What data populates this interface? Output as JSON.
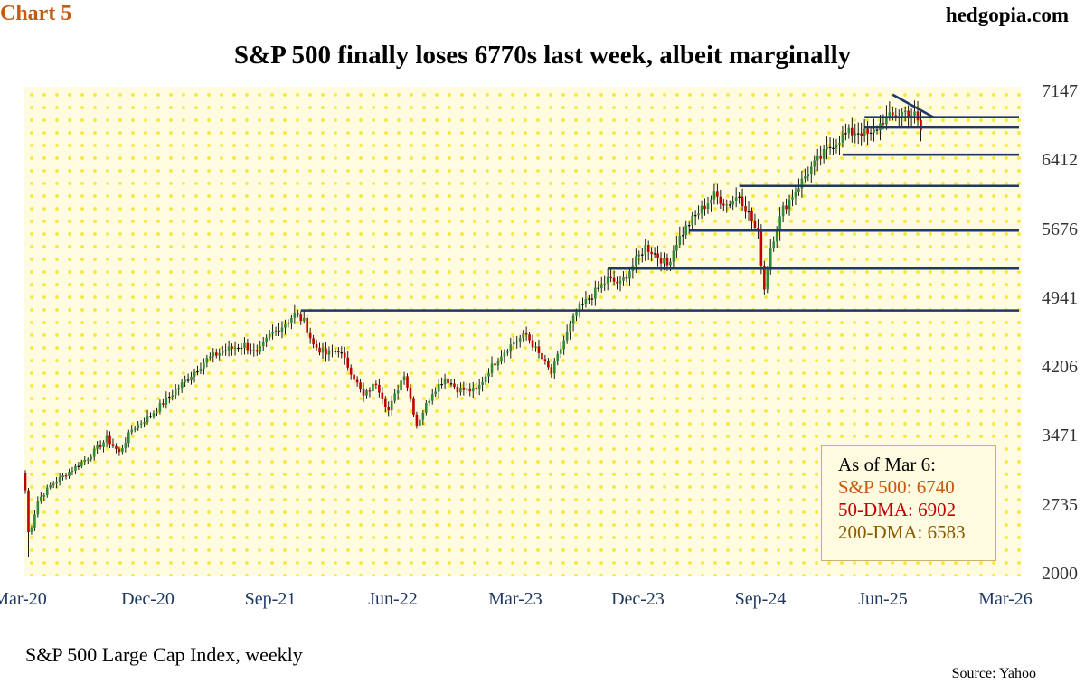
{
  "header": {
    "chart_number": "Chart 5",
    "site": "hedgopia.com",
    "title": "S&P 500 finally loses 6770s last week, albeit marginally"
  },
  "footer": {
    "subtitle": "S&P 500 Large Cap Index, weekly",
    "source": "Source: Yahoo"
  },
  "legend_box": {
    "heading": "As of Mar 6:",
    "lines": [
      {
        "text": "S&P 500: 6740",
        "color": "#c55a11"
      },
      {
        "text": "50-DMA: 6902",
        "color": "#c00000"
      },
      {
        "text": "200-DMA: 6583",
        "color": "#8b5a00"
      }
    ]
  },
  "colors": {
    "up": "#2e8b3a",
    "down": "#c00000",
    "flat": "#000000",
    "lines": "#1f3864",
    "plot_bg": "#fffbe0",
    "dots": "#f5e836"
  },
  "chart_data": {
    "type": "candlestick",
    "title": "S&P 500 finally loses 6770s last week, albeit marginally",
    "subtitle": "S&P 500 Large Cap Index, weekly",
    "ylim": [
      2000,
      7147
    ],
    "y_ticks": [
      "7147",
      "6412",
      "5676",
      "4941",
      "4206",
      "3471",
      "2735",
      "2000"
    ],
    "x_ticks": [
      "Mar-20",
      "Dec-20",
      "Sep-21",
      "Jun-22",
      "Mar-23",
      "Dec-23",
      "Sep-24",
      "Jun-25",
      "Mar-26"
    ],
    "x_range_weeks": [
      0,
      313
    ],
    "anchors": [
      [
        0,
        2900
      ],
      [
        1,
        2450
      ],
      [
        2,
        2520
      ],
      [
        4,
        2790
      ],
      [
        8,
        2950
      ],
      [
        14,
        3100
      ],
      [
        20,
        3250
      ],
      [
        26,
        3450
      ],
      [
        30,
        3300
      ],
      [
        34,
        3550
      ],
      [
        40,
        3700
      ],
      [
        46,
        3900
      ],
      [
        52,
        4100
      ],
      [
        58,
        4300
      ],
      [
        64,
        4400
      ],
      [
        70,
        4450
      ],
      [
        74,
        4350
      ],
      [
        78,
        4550
      ],
      [
        82,
        4650
      ],
      [
        86,
        4780
      ],
      [
        89,
        4700
      ],
      [
        92,
        4450
      ],
      [
        96,
        4350
      ],
      [
        100,
        4400
      ],
      [
        104,
        4170
      ],
      [
        108,
        3900
      ],
      [
        112,
        4050
      ],
      [
        116,
        3750
      ],
      [
        121,
        4150
      ],
      [
        125,
        3600
      ],
      [
        130,
        3950
      ],
      [
        134,
        4100
      ],
      [
        138,
        3980
      ],
      [
        144,
        3960
      ],
      [
        148,
        4180
      ],
      [
        152,
        4350
      ],
      [
        156,
        4480
      ],
      [
        160,
        4560
      ],
      [
        164,
        4350
      ],
      [
        168,
        4150
      ],
      [
        172,
        4500
      ],
      [
        176,
        4800
      ],
      [
        180,
        4950
      ],
      [
        186,
        5150
      ],
      [
        190,
        5100
      ],
      [
        194,
        5300
      ],
      [
        198,
        5500
      ],
      [
        202,
        5400
      ],
      [
        205,
        5300
      ],
      [
        208,
        5550
      ],
      [
        212,
        5750
      ],
      [
        216,
        5900
      ],
      [
        220,
        6050
      ],
      [
        224,
        5950
      ],
      [
        228,
        6050
      ],
      [
        231,
        5850
      ],
      [
        234,
        5620
      ],
      [
        236,
        5050
      ],
      [
        238,
        5500
      ],
      [
        242,
        5900
      ],
      [
        246,
        6100
      ],
      [
        250,
        6300
      ],
      [
        254,
        6450
      ],
      [
        258,
        6600
      ],
      [
        262,
        6700
      ],
      [
        266,
        6730
      ],
      [
        270,
        6680
      ],
      [
        274,
        6850
      ],
      [
        278,
        6900
      ],
      [
        281,
        6940
      ],
      [
        284,
        6900
      ],
      [
        286,
        6740
      ]
    ],
    "horizontal_levels": [
      {
        "level": 4818,
        "from_week": 88
      },
      {
        "level": 5265,
        "from_week": 186
      },
      {
        "level": 5670,
        "from_week": 212
      },
      {
        "level": 6147,
        "from_week": 228
      },
      {
        "level": 6480,
        "from_week": 261
      },
      {
        "level": 6770,
        "from_week": 268
      },
      {
        "level": 6880,
        "from_week": 268
      }
    ],
    "trendline": [
      [
        277,
        7120
      ],
      [
        290,
        6880
      ]
    ]
  }
}
